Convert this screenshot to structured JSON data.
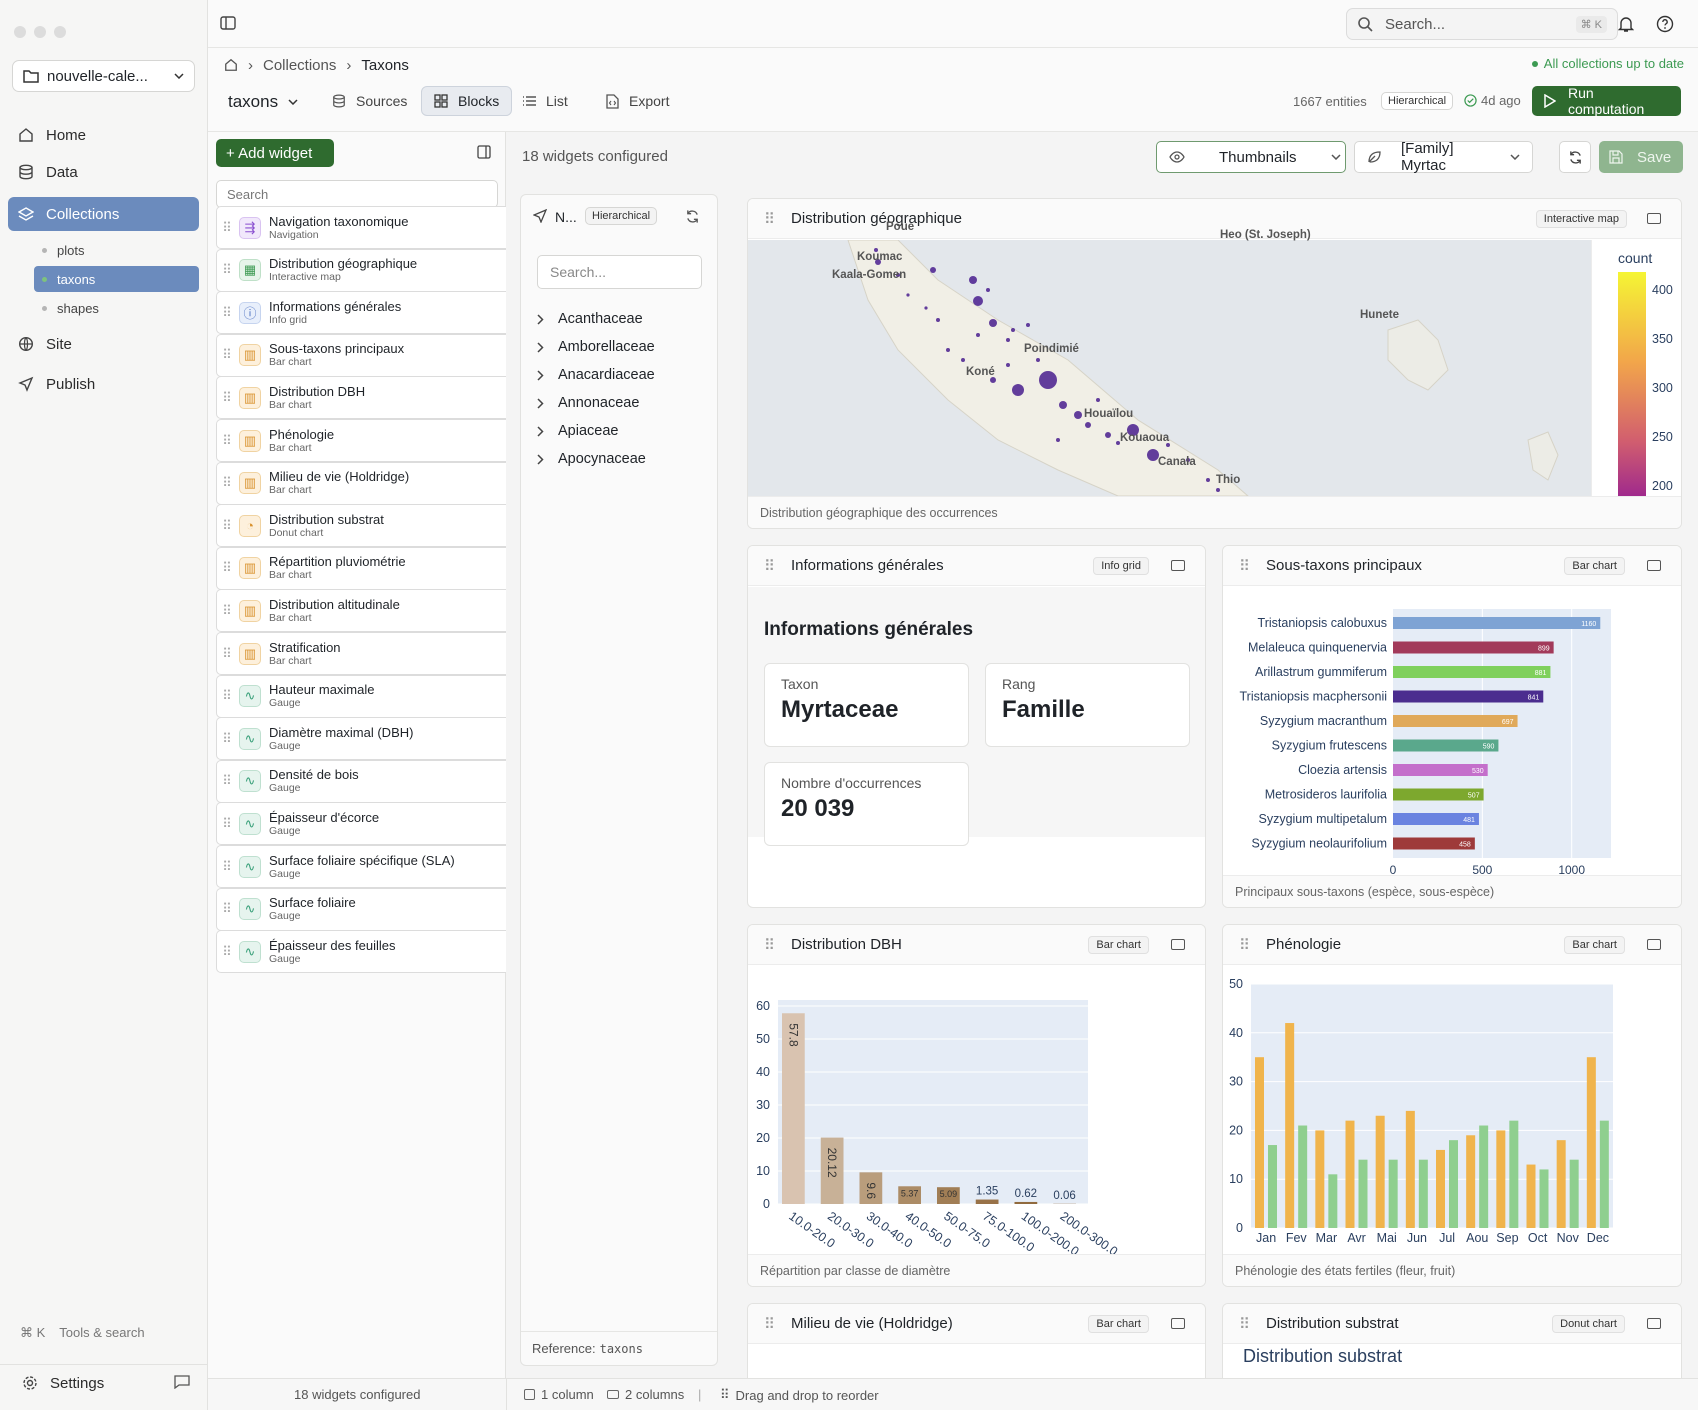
{
  "project": {
    "name": "nouvelle-cale..."
  },
  "nav": {
    "home": "Home",
    "data": "Data",
    "collections": "Collections",
    "site": "Site",
    "publish": "Publish",
    "settings": "Settings"
  },
  "collections": [
    "plots",
    "taxons",
    "shapes"
  ],
  "tools": {
    "shortcut": "⌘ K",
    "label": "Tools & search"
  },
  "search": {
    "placeholder": "Search...",
    "shortcut": "⌘ K"
  },
  "breadcrumb": {
    "item1": "Collections",
    "item2": "Taxons"
  },
  "sync_status": "All collections up to date",
  "toolbar": {
    "collection": "taxons",
    "tabs": [
      "Sources",
      "Blocks",
      "List",
      "Export"
    ],
    "entities": "1667 entities",
    "mode": "Hierarchical",
    "updated": "4d ago",
    "run": "Run computation"
  },
  "widgets_panel": {
    "add": "+ Add widget",
    "search": "Search",
    "items": [
      {
        "title": "Navigation taxonomique",
        "type": "Navigation"
      },
      {
        "title": "Distribution géographique",
        "type": "Interactive map"
      },
      {
        "title": "Informations générales",
        "type": "Info grid"
      },
      {
        "title": "Sous-taxons principaux",
        "type": "Bar chart"
      },
      {
        "title": "Distribution DBH",
        "type": "Bar chart"
      },
      {
        "title": "Phénologie",
        "type": "Bar chart"
      },
      {
        "title": "Milieu de vie (Holdridge)",
        "type": "Bar chart"
      },
      {
        "title": "Distribution substrat",
        "type": "Donut chart"
      },
      {
        "title": "Répartition pluviométrie",
        "type": "Bar chart"
      },
      {
        "title": "Distribution altitudinale",
        "type": "Bar chart"
      },
      {
        "title": "Stratification",
        "type": "Bar chart"
      },
      {
        "title": "Hauteur maximale",
        "type": "Gauge"
      },
      {
        "title": "Diamètre maximal (DBH)",
        "type": "Gauge"
      },
      {
        "title": "Densité de bois",
        "type": "Gauge"
      },
      {
        "title": "Épaisseur d'écorce",
        "type": "Gauge"
      },
      {
        "title": "Surface foliaire spécifique (SLA)",
        "type": "Gauge"
      },
      {
        "title": "Surface foliaire",
        "type": "Gauge"
      },
      {
        "title": "Épaisseur des feuilles",
        "type": "Gauge"
      }
    ]
  },
  "preview": {
    "configured": "18 widgets configured",
    "view": "Thumbnails",
    "entity": "[Family] Myrtac",
    "save": "Save"
  },
  "tree": {
    "title": "N...",
    "mode": "Hierarchical",
    "search": "Search...",
    "items": [
      "Acanthaceae",
      "Amborellaceae",
      "Anacardiaceae",
      "Annonaceae",
      "Apiaceae",
      "Apocynaceae"
    ],
    "reference_label": "Reference:",
    "reference_value": "taxons"
  },
  "map_widget": {
    "title": "Distribution géographique",
    "tag": "Interactive map",
    "caption": "Distribution géographique des occurrences",
    "places": [
      "Poue",
      "Koumac",
      "Kaala-Gomen",
      "Heo (St. Joseph)",
      "Hunete",
      "Poindimié",
      "Koné",
      "Houaïlou",
      "Kouaoua",
      "Canala",
      "Thio"
    ],
    "legend_title": "count",
    "legend_ticks": [
      "400",
      "350",
      "300",
      "250",
      "200"
    ]
  },
  "info_widget": {
    "title": "Informations générales",
    "tag": "Info grid",
    "heading": "Informations générales",
    "taxon_label": "Taxon",
    "taxon_value": "Myrtaceae",
    "rank_label": "Rang",
    "rank_value": "Famille",
    "occ_label": "Nombre d'occurrences",
    "occ_value": "20 039"
  },
  "subtaxa_widget": {
    "title": "Sous-taxons principaux",
    "tag": "Bar chart",
    "caption": "Principaux sous-taxons (espèce, sous-espèce)"
  },
  "dbh_widget": {
    "title": "Distribution DBH",
    "tag": "Bar chart",
    "caption": "Répartition par classe de diamètre"
  },
  "pheno_widget": {
    "title": "Phénologie",
    "tag": "Bar chart",
    "caption": "Phénologie des états fertiles (fleur, fruit)"
  },
  "holdridge_widget": {
    "title": "Milieu de vie (Holdridge)",
    "tag": "Bar chart"
  },
  "substrat_widget": {
    "title": "Distribution substrat",
    "tag": "Donut chart",
    "heading": "Distribution substrat"
  },
  "statusbar": {
    "configured": "18 widgets configured",
    "one_col": "1 column",
    "two_col": "2 columns",
    "reorder": "Drag and drop to reorder"
  },
  "chart_data": [
    {
      "type": "bar",
      "orientation": "horizontal",
      "categories": [
        "Tristaniopsis calobuxus",
        "Melaleuca quinquenervia",
        "Arillastrum gummiferum",
        "Tristaniopsis macphersonii",
        "Syzygium macranthum",
        "Syzygium frutescens",
        "Cloezia artensis",
        "Metrosideros laurifolia",
        "Syzygium multipetalum",
        "Syzygium neolaurifolium"
      ],
      "values": [
        1160,
        899,
        881,
        841,
        697,
        590,
        530,
        507,
        481,
        458
      ],
      "colors": [
        "#7ea3d4",
        "#a23a5a",
        "#7fd05c",
        "#4b2d8f",
        "#e0a95a",
        "#5aa88c",
        "#c46fcb",
        "#7da82e",
        "#6a83e0",
        "#9e3a3a"
      ],
      "xticks": [
        "0",
        "500",
        "1000"
      ],
      "xlim": [
        0,
        1220
      ]
    },
    {
      "type": "bar",
      "categories": [
        "10.0-20.0",
        "20.0-30.0",
        "30.0-40.0",
        "40.0-50.0",
        "50.0-75.0",
        "75.0-100.0",
        "100.0-200.0",
        "200.0-300.0"
      ],
      "values": [
        57.8,
        20.12,
        9.6,
        5.37,
        5.09,
        1.35,
        0.62,
        0.06
      ],
      "labels": [
        "57.8",
        "20.12",
        "9.6",
        "5.37",
        "5.09",
        "1.35",
        "0.62",
        "0.06"
      ],
      "yticks": [
        "0",
        "10",
        "20",
        "30",
        "40",
        "50",
        "60"
      ],
      "ylim": [
        0,
        60
      ]
    },
    {
      "type": "bar",
      "categories": [
        "Jan",
        "Fev",
        "Mar",
        "Avr",
        "Mai",
        "Jun",
        "Jul",
        "Aou",
        "Sep",
        "Oct",
        "Nov",
        "Dec"
      ],
      "series": [
        {
          "values": [
            35,
            42,
            20,
            22,
            23,
            24,
            16,
            19,
            20,
            13,
            18,
            35
          ],
          "color": "#f0b44c"
        },
        {
          "values": [
            17,
            21,
            11,
            14,
            14,
            14,
            18,
            21,
            22,
            12,
            14,
            22
          ],
          "color": "#8fcf8f"
        }
      ],
      "yticks": [
        "0",
        "10",
        "20",
        "30",
        "40",
        "50"
      ],
      "ylim": [
        0,
        50
      ]
    }
  ]
}
